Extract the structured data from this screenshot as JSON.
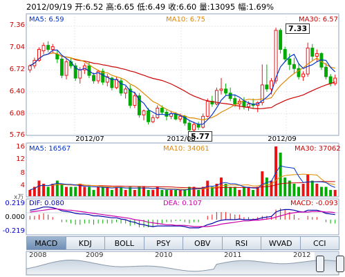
{
  "header": {
    "date": "2012/09/19",
    "open": "开:6.52",
    "high": "高:6.65",
    "low": "低:6.49",
    "close": "收:6.60",
    "volume": "量:13095",
    "change": "幅:1.69%"
  },
  "price_panel": {
    "ma5_label": "MA5: 6.59",
    "ma10_label": "MA10: 6.75",
    "ma30_label": "MA30: 6.57",
    "y_ticks": [
      "7.36",
      "7.04",
      "6.72",
      "6.40",
      "6.08",
      "5.76"
    ],
    "max_tag": "7.33",
    "min_tag": "5.77",
    "x_dates": [
      "2012/07",
      "2012/08",
      "2012/09"
    ]
  },
  "volume_panel": {
    "ma5_label": "MA5: 16567",
    "ma10_label": "MA10: 34061",
    "ma30_label": "MA30: 37062",
    "y_ticks": [
      "16",
      "12",
      "8",
      "4"
    ],
    "unit": "x万"
  },
  "macd_panel": {
    "dif_label": "DIF: 0.080",
    "dea_label": "DEA: 0.107",
    "macd_label": "MACD: -0.093",
    "y_ticks": [
      "0.219",
      "0.000",
      "-0.219"
    ]
  },
  "tabs": [
    "MACD",
    "KDJ",
    "BOLL",
    "PSY",
    "OBV",
    "RSI",
    "WVAD",
    "CCI"
  ],
  "navigator": {
    "years": [
      "2008",
      "2009",
      "2010",
      "2011",
      "2012"
    ]
  },
  "colors": {
    "up": "#ee1111",
    "down": "#00aa00",
    "ma5": "#0033cc",
    "ma10": "#e08800",
    "ma30": "#cc0000"
  },
  "chart_data": {
    "type": "candlestick",
    "title": "",
    "ylim": [
      5.76,
      7.36
    ],
    "candles": [
      [
        6.72,
        6.8,
        6.68,
        6.78
      ],
      [
        6.78,
        6.9,
        6.74,
        6.86
      ],
      [
        6.86,
        7.05,
        6.84,
        7.02
      ],
      [
        7.0,
        7.12,
        6.95,
        7.08
      ],
      [
        7.08,
        7.14,
        6.98,
        7.02
      ],
      [
        7.02,
        7.1,
        6.96,
        7.06
      ],
      [
        6.95,
        7.0,
        6.82,
        6.88
      ],
      [
        6.88,
        6.92,
        6.6,
        6.64
      ],
      [
        6.64,
        6.88,
        6.58,
        6.84
      ],
      [
        6.84,
        6.9,
        6.74,
        6.78
      ],
      [
        6.78,
        6.82,
        6.56,
        6.6
      ],
      [
        6.6,
        6.76,
        6.52,
        6.72
      ],
      [
        6.72,
        6.82,
        6.66,
        6.78
      ],
      [
        6.78,
        6.84,
        6.6,
        6.64
      ],
      [
        6.64,
        6.68,
        6.52,
        6.56
      ],
      [
        6.56,
        6.72,
        6.52,
        6.7
      ],
      [
        6.7,
        6.74,
        6.5,
        6.54
      ],
      [
        6.54,
        6.66,
        6.48,
        6.62
      ],
      [
        6.6,
        6.62,
        6.42,
        6.46
      ],
      [
        6.46,
        6.62,
        6.44,
        6.58
      ],
      [
        6.56,
        6.6,
        6.34,
        6.38
      ],
      [
        6.38,
        6.48,
        6.3,
        6.44
      ],
      [
        6.44,
        6.5,
        6.16,
        6.2
      ],
      [
        6.2,
        6.4,
        6.16,
        6.34
      ],
      [
        6.34,
        6.38,
        6.02,
        6.06
      ],
      [
        6.06,
        6.14,
        5.98,
        6.12
      ],
      [
        6.12,
        6.16,
        5.92,
        5.96
      ],
      [
        5.96,
        6.06,
        5.94,
        6.02
      ],
      [
        6.02,
        6.2,
        6.0,
        6.16
      ],
      [
        6.16,
        6.2,
        6.06,
        6.1
      ],
      [
        6.1,
        6.14,
        5.98,
        6.04
      ],
      [
        6.04,
        6.12,
        6.0,
        6.08
      ],
      [
        6.08,
        6.1,
        5.98,
        6.0
      ],
      [
        6.0,
        6.08,
        5.96,
        6.04
      ],
      [
        6.04,
        6.06,
        5.9,
        5.94
      ],
      [
        5.94,
        5.98,
        5.8,
        5.84
      ],
      [
        5.84,
        5.96,
        5.77,
        5.92
      ],
      [
        5.92,
        5.96,
        5.84,
        5.88
      ],
      [
        5.88,
        6.08,
        5.86,
        6.04
      ],
      [
        6.04,
        6.3,
        6.02,
        6.26
      ],
      [
        6.26,
        6.34,
        6.18,
        6.22
      ],
      [
        6.22,
        6.46,
        6.2,
        6.42
      ],
      [
        6.42,
        6.6,
        6.36,
        6.44
      ],
      [
        6.44,
        6.52,
        6.34,
        6.38
      ],
      [
        6.38,
        6.46,
        6.26,
        6.3
      ],
      [
        6.3,
        6.36,
        6.18,
        6.22
      ],
      [
        6.22,
        6.3,
        6.14,
        6.26
      ],
      [
        6.26,
        6.32,
        6.14,
        6.18
      ],
      [
        6.18,
        6.26,
        6.12,
        6.22
      ],
      [
        6.22,
        6.3,
        6.16,
        6.2
      ],
      [
        6.2,
        6.26,
        6.1,
        6.24
      ],
      [
        6.24,
        6.8,
        6.2,
        6.5
      ],
      [
        6.5,
        6.8,
        6.4,
        6.44
      ],
      [
        6.44,
        6.6,
        6.36,
        6.56
      ],
      [
        6.56,
        7.34,
        6.52,
        7.3
      ],
      [
        7.3,
        7.33,
        6.96,
        7.02
      ],
      [
        7.02,
        7.06,
        6.84,
        6.88
      ],
      [
        6.88,
        6.96,
        6.72,
        6.8
      ],
      [
        6.8,
        6.9,
        6.66,
        6.74
      ],
      [
        6.74,
        6.82,
        6.58,
        6.62
      ],
      [
        6.62,
        6.7,
        6.56,
        6.66
      ],
      [
        6.66,
        7.12,
        6.62,
        7.04
      ],
      [
        7.04,
        7.1,
        6.86,
        6.92
      ],
      [
        6.92,
        7.02,
        6.84,
        6.96
      ],
      [
        6.96,
        6.98,
        6.72,
        6.76
      ],
      [
        6.76,
        6.82,
        6.58,
        6.62
      ],
      [
        6.62,
        6.66,
        6.48,
        6.52
      ],
      [
        6.52,
        6.65,
        6.49,
        6.6
      ]
    ],
    "volume": [
      2,
      3,
      5,
      4,
      3,
      4,
      5,
      4,
      3,
      3,
      3,
      4,
      3,
      3,
      2,
      3,
      3,
      3,
      2,
      3,
      3,
      2,
      3,
      2,
      3,
      3,
      2,
      2,
      3,
      2,
      2,
      2,
      2,
      2,
      2,
      3,
      3,
      2,
      3,
      5,
      3,
      4,
      6,
      4,
      3,
      3,
      2,
      3,
      3,
      2,
      3,
      8,
      6,
      5,
      16,
      14,
      6,
      5,
      4,
      3,
      4,
      7,
      5,
      4,
      3,
      3,
      2,
      2
    ],
    "dif": [
      0.15,
      0.16,
      0.18,
      0.2,
      0.2,
      0.19,
      0.17,
      0.14,
      0.13,
      0.12,
      0.1,
      0.09,
      0.09,
      0.08,
      0.06,
      0.06,
      0.05,
      0.04,
      0.03,
      0.03,
      0.01,
      0.0,
      -0.03,
      -0.04,
      -0.07,
      -0.08,
      -0.1,
      -0.11,
      -0.1,
      -0.1,
      -0.1,
      -0.1,
      -0.1,
      -0.1,
      -0.11,
      -0.13,
      -0.13,
      -0.13,
      -0.11,
      -0.08,
      -0.06,
      -0.03,
      -0.01,
      0.0,
      0.0,
      0.0,
      0.01,
      0.0,
      0.0,
      0.0,
      0.01,
      0.03,
      0.04,
      0.05,
      0.12,
      0.15,
      0.16,
      0.16,
      0.15,
      0.13,
      0.12,
      0.15,
      0.15,
      0.15,
      0.13,
      0.1,
      0.09,
      0.08
    ],
    "dea": [
      0.12,
      0.13,
      0.14,
      0.15,
      0.16,
      0.17,
      0.17,
      0.16,
      0.15,
      0.15,
      0.14,
      0.13,
      0.12,
      0.11,
      0.1,
      0.09,
      0.08,
      0.07,
      0.06,
      0.05,
      0.04,
      0.03,
      0.02,
      0.0,
      -0.01,
      -0.02,
      -0.04,
      -0.05,
      -0.06,
      -0.07,
      -0.08,
      -0.08,
      -0.09,
      -0.09,
      -0.09,
      -0.1,
      -0.11,
      -0.11,
      -0.11,
      -0.11,
      -0.1,
      -0.09,
      -0.07,
      -0.06,
      -0.05,
      -0.04,
      -0.03,
      -0.02,
      -0.02,
      -0.01,
      -0.01,
      0.0,
      0.01,
      0.02,
      0.04,
      0.06,
      0.08,
      0.1,
      0.11,
      0.12,
      0.12,
      0.12,
      0.13,
      0.13,
      0.13,
      0.12,
      0.12,
      0.11
    ]
  }
}
